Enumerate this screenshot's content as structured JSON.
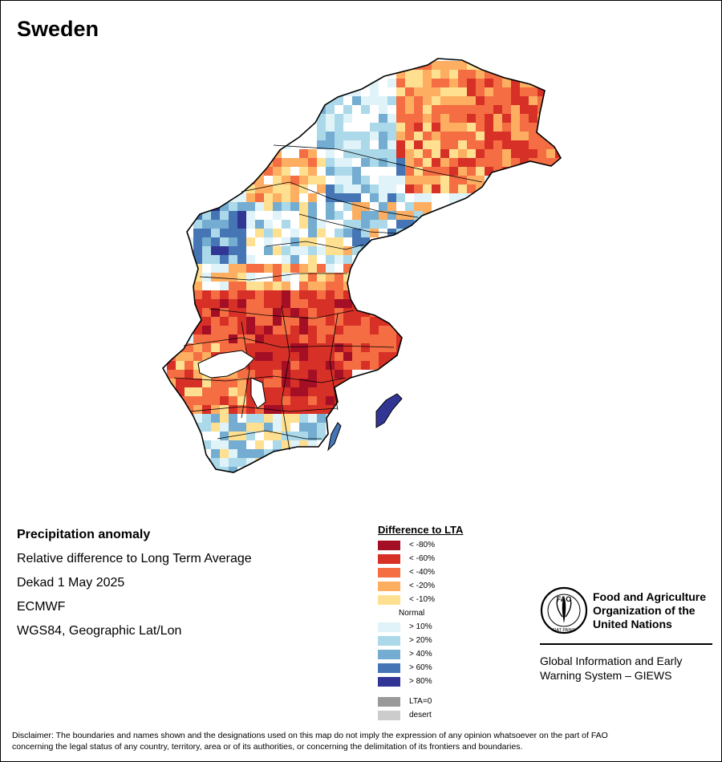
{
  "title": "Sweden",
  "map": {
    "product": "Precipitation anomaly",
    "description": "Relative difference to Long Term Average",
    "period": "Dekad 1 May 2025",
    "source": "ECMWF",
    "projection": "WGS84, Geographic Lat/Lon"
  },
  "legend": {
    "title": "Difference to LTA",
    "items": [
      {
        "label": "< -80%",
        "color": "#a50f26"
      },
      {
        "label": "< -60%",
        "color": "#d73027"
      },
      {
        "label": "< -40%",
        "color": "#f46d43"
      },
      {
        "label": "< -20%",
        "color": "#fdae61"
      },
      {
        "label": "< -10%",
        "color": "#fee090"
      },
      {
        "label": "Normal",
        "color": "#ffffff"
      },
      {
        "label": "> 10%",
        "color": "#e0f3f8"
      },
      {
        "label": "> 20%",
        "color": "#abd9e9"
      },
      {
        "label": "> 40%",
        "color": "#74add1"
      },
      {
        "label": "> 60%",
        "color": "#4575b4"
      },
      {
        "label": "> 80%",
        "color": "#313695"
      }
    ],
    "extras": [
      {
        "label": "LTA=0",
        "color": "#999999"
      },
      {
        "label": "desert",
        "color": "#cccccc"
      }
    ]
  },
  "organization": {
    "logo_text": "FAO",
    "logo_motto": "FIAT PANIS",
    "name_lines": [
      "Food and Agriculture",
      "Organization of the",
      "United Nations"
    ],
    "system_lines": [
      "Global Information and Early",
      "Warning System – GIEWS"
    ]
  },
  "disclaimer_lines": [
    "Disclaimer: The boundaries and names shown and the designations used on this map do not imply the expression of any opinion whatsoever on the part of FAO",
    "concerning the legal status of any country, territory, area or of its authorities, or concerning the delimitation of its frontiers and boundaries."
  ]
}
